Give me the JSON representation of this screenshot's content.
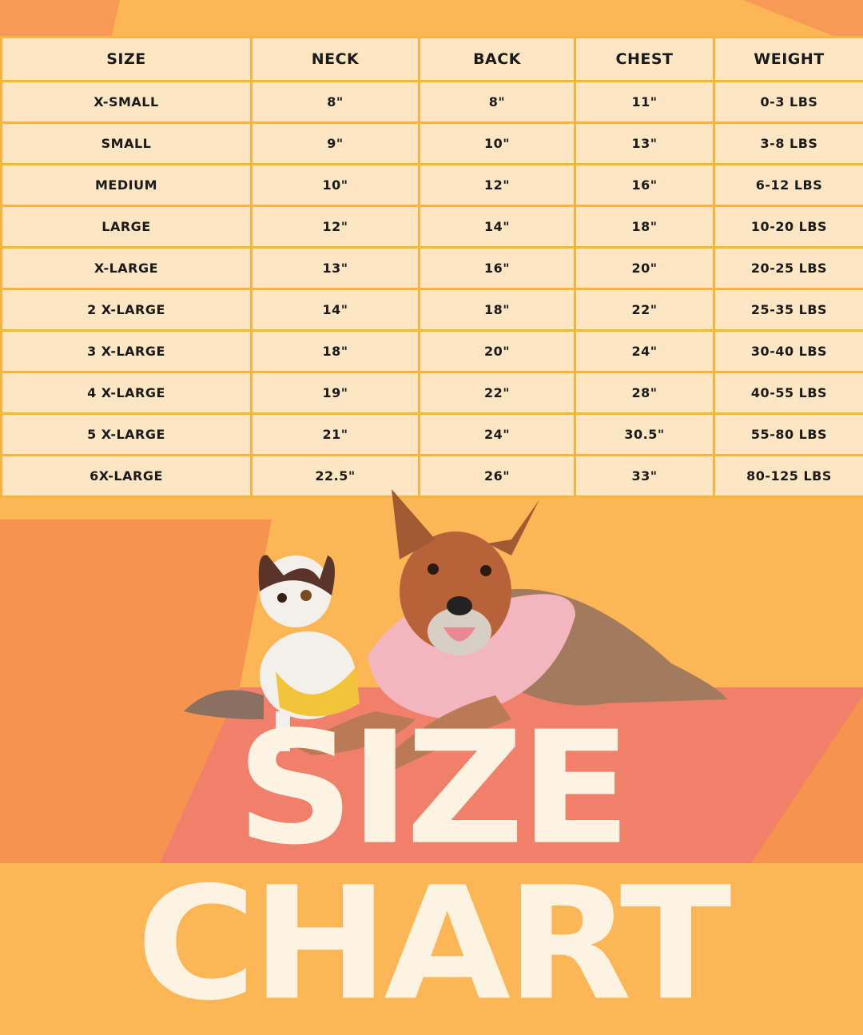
{
  "colors": {
    "table_bg": "#fde6c4",
    "grid": "#f4b541",
    "orange": "#f6934f",
    "yellow": "#fdb655",
    "coral": "#f0806a",
    "title": "#fdf3e3"
  },
  "title": "SIZE CHART",
  "chart_data": {
    "type": "table",
    "columns": [
      "SIZE",
      "NECK",
      "BACK",
      "CHEST",
      "WEIGHT"
    ],
    "rows": [
      [
        "X-SMALL",
        "8\"",
        "8\"",
        "11\"",
        "0-3 LBS"
      ],
      [
        "SMALL",
        "9\"",
        "10\"",
        "13\"",
        "3-8 LBS"
      ],
      [
        "MEDIUM",
        "10\"",
        "12\"",
        "16\"",
        "6-12 LBS"
      ],
      [
        "LARGE",
        "12\"",
        "14\"",
        "18\"",
        "10-20 LBS"
      ],
      [
        "X-LARGE",
        "13\"",
        "16\"",
        "20\"",
        "20-25 LBS"
      ],
      [
        "2 X-LARGE",
        "14\"",
        "18\"",
        "22\"",
        "25-35 LBS"
      ],
      [
        "3 X-LARGE",
        "18\"",
        "20\"",
        "24\"",
        "30-40 LBS"
      ],
      [
        "4 X-LARGE",
        "19\"",
        "22\"",
        "28\"",
        "40-55 LBS"
      ],
      [
        "5 X-LARGE",
        "21\"",
        "24\"",
        "30.5\"",
        "55-80 LBS"
      ],
      [
        "6X-LARGE",
        "22.5\"",
        "26\"",
        "33\"",
        "80-125 LBS"
      ]
    ]
  }
}
